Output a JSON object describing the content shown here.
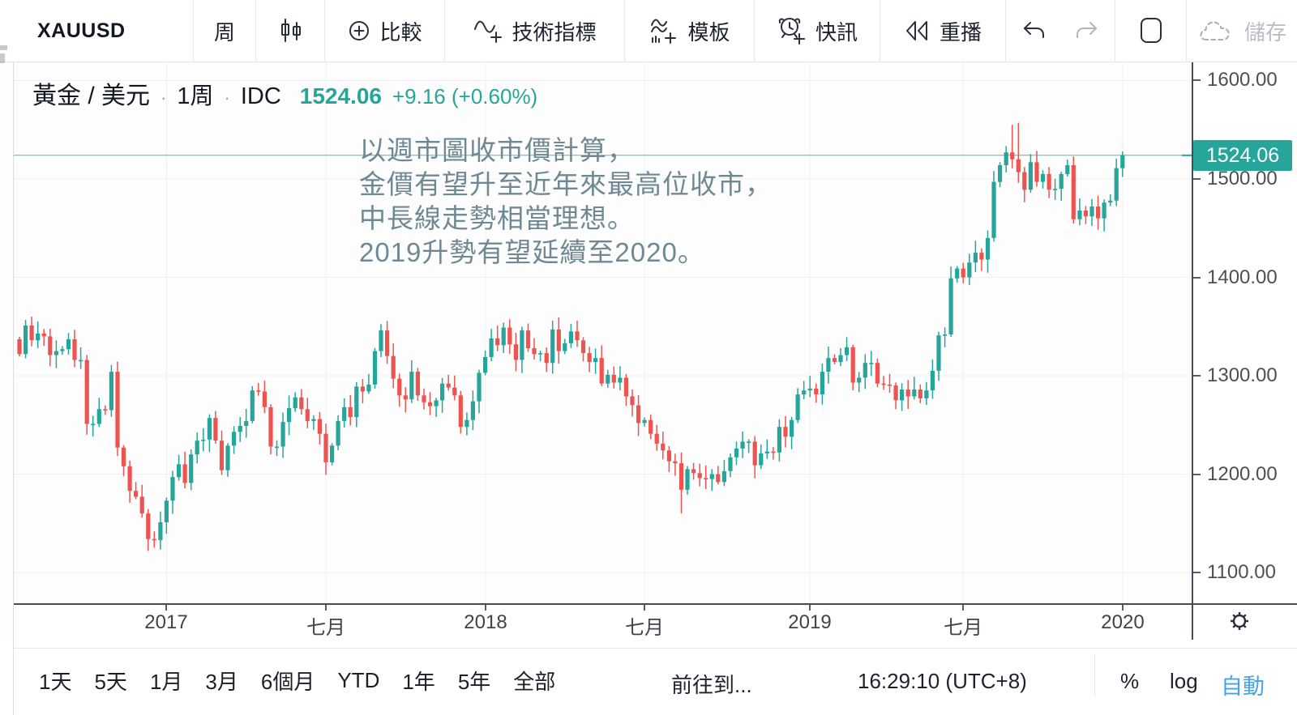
{
  "toolbar": {
    "symbol": "XAUUSD",
    "interval_label": "周",
    "compare_label": "比較",
    "indicators_label": "技術指標",
    "templates_label": "模板",
    "alerts_label": "快訊",
    "replay_label": "重播",
    "save_label": "儲存"
  },
  "header": {
    "title": "黃金 / 美元",
    "dot": "·",
    "interval": "1周",
    "exchange": "IDC",
    "price": "1524.06",
    "change": "+9.16 (+0.60%)"
  },
  "annotation": {
    "lines": [
      "以週市圖收市價計算，",
      "金價有望升至近年來最高位收市，",
      "中長線走勢相當理想。",
      "2019升勢有望延續至2020。"
    ]
  },
  "price_axis": {
    "labels": [
      "1600.00",
      "1500.00",
      "1400.00",
      "1300.00",
      "1200.00",
      "1100.00"
    ],
    "values": [
      1600,
      1500,
      1400,
      1300,
      1200,
      1100
    ],
    "tag_text": "1524.06"
  },
  "time_axis": {
    "ticks": [
      {
        "label": "2017",
        "week": 24
      },
      {
        "label": "七月",
        "week": 50
      },
      {
        "label": "2018",
        "week": 76
      },
      {
        "label": "七月",
        "week": 102
      },
      {
        "label": "2019",
        "week": 129
      },
      {
        "label": "七月",
        "week": 154
      },
      {
        "label": "2020",
        "week": 180
      }
    ]
  },
  "bottom_bar": {
    "ranges": [
      "1天",
      "5天",
      "1月",
      "3月",
      "6個月",
      "YTD",
      "1年",
      "5年",
      "全部"
    ],
    "goto": "前往到...",
    "clock": "16:29:10 (UTC+8)",
    "percent": "%",
    "log": "log",
    "auto": "自動"
  },
  "colors": {
    "up": "#26a69a",
    "down": "#ef5350",
    "accent": "#26a69a",
    "grid": "#edf0f2",
    "auto_blue": "#4ba3dd",
    "annotation_text": "#6e8994"
  },
  "chart_data": {
    "type": "candlestick",
    "title": "黃金 / 美元 1周 IDC",
    "symbol": "XAUUSD",
    "interval": "1W",
    "last_price": 1524.06,
    "price_gridlines": [
      1600,
      1500,
      1400,
      1300,
      1200,
      1100
    ],
    "y_range": [
      1069,
      1618
    ],
    "first_open": 1337,
    "closes": [
      1322,
      1351,
      1336,
      1343,
      1340,
      1321,
      1325,
      1327,
      1337,
      1316,
      1316,
      1251,
      1251,
      1266,
      1265,
      1304,
      1227,
      1208,
      1183,
      1177,
      1160,
      1134,
      1133,
      1151,
      1173,
      1197,
      1210,
      1191,
      1220,
      1234,
      1235,
      1257,
      1234,
      1204,
      1229,
      1243,
      1249,
      1254,
      1285,
      1284,
      1268,
      1228,
      1228,
      1253,
      1267,
      1278,
      1266,
      1254,
      1256,
      1241,
      1212,
      1229,
      1254,
      1268,
      1258,
      1289,
      1284,
      1291,
      1325,
      1346,
      1320,
      1297,
      1280,
      1276,
      1304,
      1280,
      1273,
      1269,
      1275,
      1292,
      1288,
      1280,
      1248,
      1255,
      1274,
      1303,
      1319,
      1338,
      1331,
      1349,
      1332,
      1316,
      1346,
      1328,
      1322,
      1323,
      1313,
      1347,
      1325,
      1333,
      1345,
      1336,
      1323,
      1314,
      1318,
      1292,
      1301,
      1293,
      1298,
      1279,
      1270,
      1252,
      1255,
      1241,
      1231,
      1224,
      1213,
      1211,
      1184,
      1205,
      1201,
      1196,
      1195,
      1200,
      1192,
      1203,
      1217,
      1226,
      1233,
      1233,
      1209,
      1221,
      1223,
      1222,
      1248,
      1238,
      1255,
      1281,
      1285,
      1287,
      1281,
      1304,
      1318,
      1314,
      1321,
      1329,
      1293,
      1298,
      1313,
      1313,
      1292,
      1291,
      1290,
      1275,
      1286,
      1279,
      1286,
      1277,
      1285,
      1305,
      1341,
      1342,
      1399,
      1409,
      1400,
      1415,
      1425,
      1418,
      1440,
      1497,
      1514,
      1527,
      1520,
      1507,
      1489,
      1517,
      1497,
      1505,
      1489,
      1490,
      1505,
      1514,
      1459,
      1468,
      1462,
      1472,
      1460,
      1476,
      1478,
      1511,
      1524.06
    ],
    "wick_overrides": {
      "21": {
        "low": 1122
      },
      "108": {
        "low": 1160
      },
      "152": {
        "high": 1411
      },
      "162": {
        "high": 1555
      },
      "163": {
        "high": 1557
      },
      "180": {
        "high": 1528,
        "low": 1502
      }
    }
  }
}
